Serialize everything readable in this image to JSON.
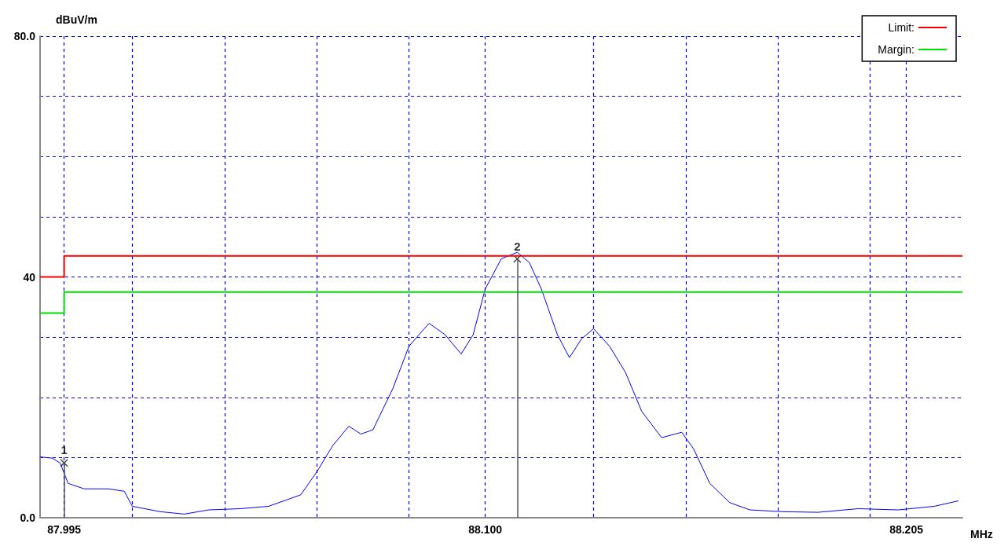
{
  "chart_data": {
    "type": "line",
    "xlabel": "MHz",
    "ylabel": "dBuV/m",
    "xlim": [
      87.989,
      88.219
    ],
    "xticks": [
      {
        "value": 87.995,
        "label": "87.995"
      },
      {
        "value": 88.012,
        "label": null
      },
      {
        "value": 88.035,
        "label": null
      },
      {
        "value": 88.058,
        "label": null
      },
      {
        "value": 88.081,
        "label": null
      },
      {
        "value": 88.1,
        "label": "88.100"
      },
      {
        "value": 88.127,
        "label": null
      },
      {
        "value": 88.15,
        "label": null
      },
      {
        "value": 88.173,
        "label": null
      },
      {
        "value": 88.196,
        "label": null
      },
      {
        "value": 88.205,
        "label": "88.205"
      }
    ],
    "ylim": [
      0,
      80
    ],
    "yticks": [
      {
        "value": 0,
        "label": "0.0"
      },
      {
        "value": 10,
        "label": null
      },
      {
        "value": 20,
        "label": null
      },
      {
        "value": 30,
        "label": null
      },
      40,
      {
        "value": 50,
        "label": null
      },
      {
        "value": 60,
        "label": null
      },
      {
        "value": 70,
        "label": null
      },
      {
        "value": 80,
        "label": "80.0"
      }
    ],
    "grid": true,
    "legend": "top right",
    "marker": "none",
    "line_style": "solid",
    "series": [
      {
        "color": "#0000ff",
        "x": [
          87.989,
          87.992,
          87.994,
          87.996,
          88.0,
          88.006,
          88.01,
          88.012,
          88.019,
          88.025,
          88.031,
          88.039,
          88.046,
          88.054,
          88.058,
          88.062,
          88.066,
          88.069,
          88.072,
          88.077,
          88.081,
          88.086,
          88.09,
          88.094,
          88.097,
          88.1,
          88.104,
          88.108,
          88.111,
          88.114,
          88.118,
          88.121,
          88.124,
          88.127,
          88.131,
          88.135,
          88.139,
          88.144,
          88.149,
          88.152,
          88.156,
          88.161,
          88.166,
          88.174,
          88.183,
          88.193,
          88.203,
          88.212,
          88.218
        ],
        "values": [
          10.1,
          9.9,
          9.1,
          5.7,
          4.8,
          4.8,
          4.4,
          1.9,
          1.0,
          0.6,
          1.3,
          1.5,
          1.9,
          3.8,
          7.6,
          12.0,
          15.2,
          13.9,
          14.6,
          21.5,
          28.5,
          32.3,
          30.4,
          27.2,
          30.4,
          38.0,
          43.0,
          44.1,
          42.4,
          38.0,
          30.4,
          26.6,
          29.7,
          31.4,
          28.5,
          24.1,
          17.7,
          13.3,
          14.2,
          11.4,
          5.7,
          2.5,
          1.3,
          1.0,
          0.9,
          1.5,
          1.3,
          1.9,
          2.8
        ]
      },
      {
        "name": "Limit:",
        "type": "step",
        "color": "#ff0000",
        "x": [
          87.989,
          87.995,
          88.219
        ],
        "values": [
          40,
          43.5,
          43.5
        ]
      },
      {
        "name": "Margin:",
        "type": "step",
        "color": "#00e000",
        "x": [
          87.989,
          87.995,
          88.219
        ],
        "values": [
          34,
          37.5,
          37.5
        ]
      }
    ],
    "annotations": [
      {
        "text": "1",
        "x": 87.995,
        "y": 9.1
      },
      {
        "text": "2",
        "x": 88.108,
        "y": 43.0
      }
    ]
  }
}
